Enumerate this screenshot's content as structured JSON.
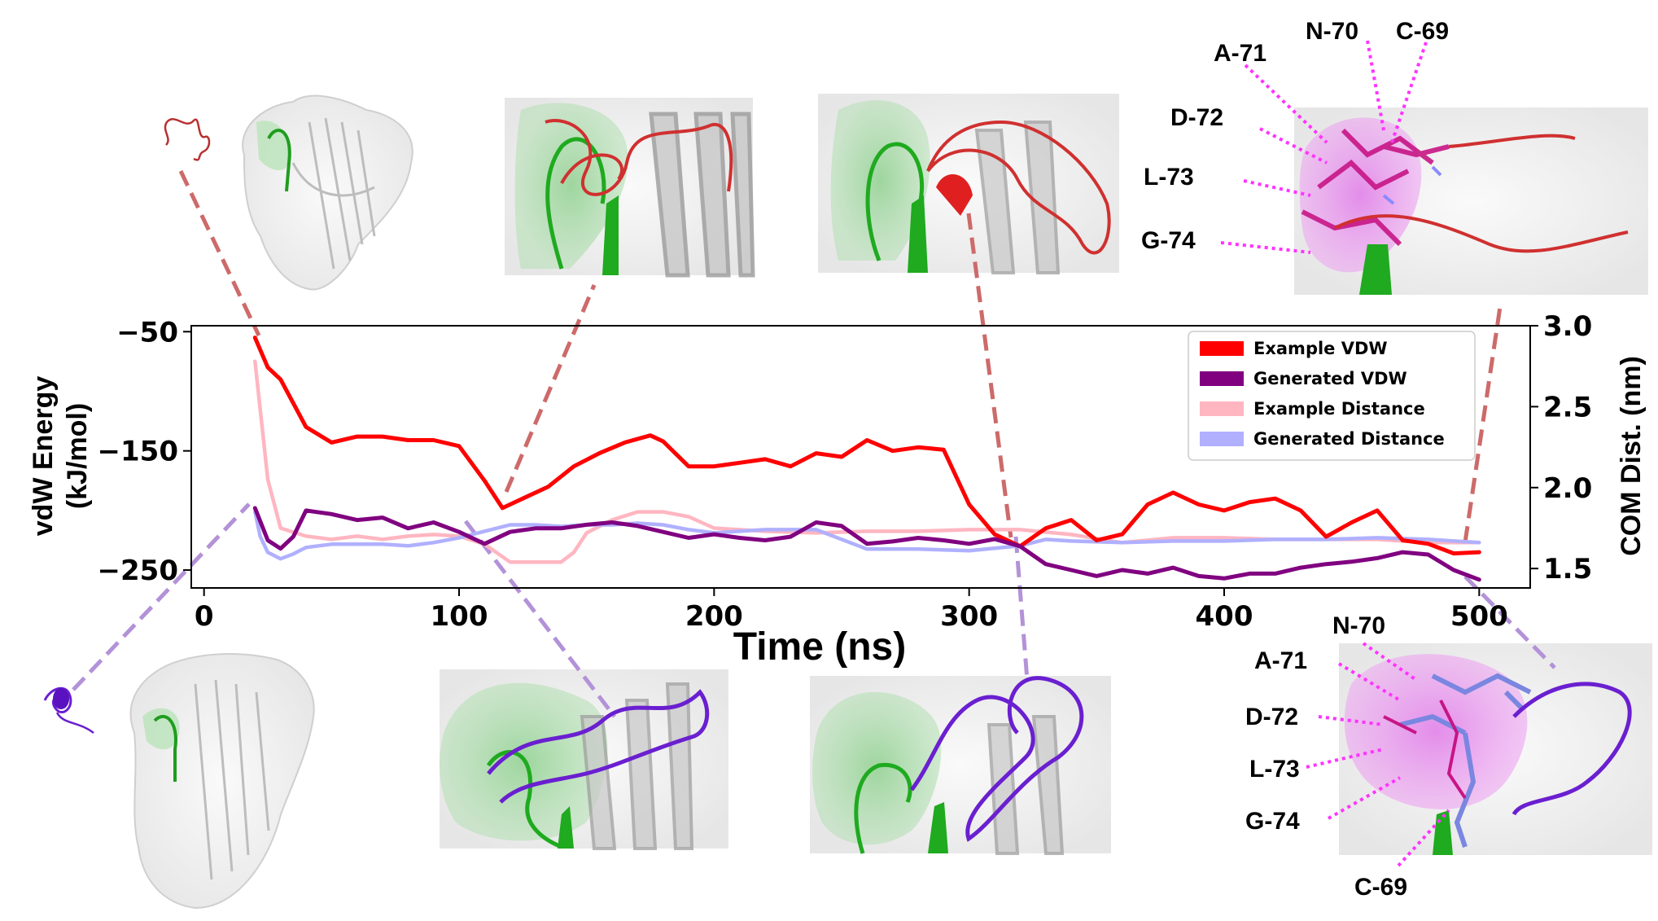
{
  "chart_data": {
    "type": "line",
    "xlabel": "Time (ns)",
    "ylabel_left": "vdW Energy\n(kJ/mol)",
    "ylabel_right": "COM Dist. (nm)",
    "xlim": [
      -5,
      520
    ],
    "ylim_left": [
      -265,
      -45
    ],
    "ylim_right": [
      1.38,
      3.0
    ],
    "x_ticks": [
      0,
      100,
      200,
      300,
      400,
      500
    ],
    "y_ticks_left": [
      -50,
      -150,
      -250
    ],
    "y_ticks_left_labels": [
      "−50",
      "−150",
      "−250"
    ],
    "y_ticks_right": [
      1.5,
      2.0,
      2.5,
      3.0
    ],
    "y_ticks_right_labels": [
      "1.5",
      "2.0",
      "2.5",
      "3.0"
    ],
    "grid": false,
    "legend_position": "top-right",
    "series": [
      {
        "name": "Example VDW",
        "axis": "left",
        "color": "#ff0000",
        "x": [
          20,
          25,
          30,
          40,
          50,
          60,
          70,
          80,
          90,
          100,
          110,
          117,
          125,
          135,
          145,
          155,
          165,
          175,
          180,
          190,
          200,
          210,
          220,
          230,
          240,
          250,
          260,
          270,
          280,
          290,
          300,
          310,
          320,
          330,
          340,
          350,
          360,
          370,
          380,
          390,
          400,
          410,
          420,
          430,
          440,
          450,
          460,
          470,
          480,
          490,
          500
        ],
        "y": [
          -55,
          -80,
          -90,
          -130,
          -143,
          -138,
          -138,
          -141,
          -141,
          -146,
          -175,
          -198,
          -190,
          -180,
          -163,
          -152,
          -143,
          -137,
          -142,
          -163,
          -163,
          -160,
          -157,
          -163,
          -152,
          -155,
          -141,
          -150,
          -147,
          -149,
          -195,
          -220,
          -230,
          -215,
          -208,
          -225,
          -220,
          -195,
          -185,
          -195,
          -200,
          -193,
          -190,
          -200,
          -222,
          -210,
          -200,
          -225,
          -228,
          -236,
          -235
        ]
      },
      {
        "name": "Generated VDW",
        "axis": "left",
        "color": "#800080",
        "x": [
          20,
          25,
          30,
          35,
          40,
          50,
          60,
          70,
          80,
          90,
          100,
          110,
          120,
          130,
          140,
          150,
          160,
          170,
          180,
          190,
          200,
          210,
          220,
          230,
          240,
          250,
          260,
          270,
          280,
          290,
          300,
          310,
          320,
          330,
          340,
          350,
          360,
          370,
          380,
          390,
          400,
          410,
          420,
          430,
          440,
          450,
          460,
          470,
          480,
          490,
          500
        ],
        "y": [
          -198,
          -225,
          -232,
          -222,
          -200,
          -203,
          -208,
          -206,
          -215,
          -210,
          -218,
          -228,
          -218,
          -215,
          -215,
          -212,
          -210,
          -213,
          -218,
          -223,
          -220,
          -223,
          -225,
          -222,
          -210,
          -213,
          -228,
          -226,
          -223,
          -225,
          -228,
          -224,
          -230,
          -245,
          -250,
          -255,
          -250,
          -253,
          -248,
          -255,
          -257,
          -253,
          -253,
          -248,
          -245,
          -243,
          -240,
          -235,
          -237,
          -250,
          -258
        ]
      },
      {
        "name": "Example Distance",
        "axis": "right",
        "color": "#ffb6c1",
        "x": [
          20,
          25,
          30,
          40,
          50,
          60,
          70,
          80,
          90,
          100,
          110,
          120,
          130,
          140,
          145,
          150,
          160,
          170,
          180,
          190,
          200,
          220,
          240,
          260,
          280,
          300,
          320,
          340,
          360,
          380,
          400,
          420,
          440,
          460,
          480,
          500
        ],
        "y": [
          2.78,
          2.05,
          1.75,
          1.7,
          1.68,
          1.7,
          1.68,
          1.7,
          1.71,
          1.7,
          1.65,
          1.54,
          1.54,
          1.54,
          1.6,
          1.72,
          1.8,
          1.85,
          1.85,
          1.82,
          1.75,
          1.73,
          1.72,
          1.73,
          1.73,
          1.74,
          1.74,
          1.71,
          1.66,
          1.69,
          1.69,
          1.68,
          1.68,
          1.68,
          1.66,
          1.66
        ]
      },
      {
        "name": "Generated Distance",
        "axis": "right",
        "color": "#b0b0ff",
        "x": [
          20,
          22,
          25,
          30,
          35,
          40,
          50,
          60,
          70,
          80,
          90,
          100,
          110,
          120,
          130,
          140,
          150,
          160,
          170,
          180,
          190,
          200,
          220,
          240,
          260,
          280,
          300,
          320,
          330,
          340,
          360,
          380,
          400,
          420,
          440,
          460,
          480,
          500
        ],
        "y": [
          1.85,
          1.7,
          1.6,
          1.56,
          1.59,
          1.63,
          1.65,
          1.65,
          1.65,
          1.64,
          1.66,
          1.69,
          1.73,
          1.77,
          1.77,
          1.76,
          1.77,
          1.77,
          1.78,
          1.77,
          1.74,
          1.72,
          1.74,
          1.74,
          1.62,
          1.62,
          1.61,
          1.64,
          1.68,
          1.67,
          1.66,
          1.67,
          1.67,
          1.68,
          1.68,
          1.69,
          1.68,
          1.66
        ]
      }
    ]
  },
  "annotations": {
    "top_right_residues": [
      "N-70",
      "C-69",
      "A-71",
      "D-72",
      "L-73",
      "G-74"
    ],
    "bottom_right_residues": [
      "N-70",
      "A-71",
      "D-72",
      "L-73",
      "G-74",
      "C-69"
    ]
  },
  "colors": {
    "example_peptide": "#d03030",
    "generated_peptide": "#6a1fd0",
    "target_green": "#22aa22",
    "label_leader": "#ff33ff"
  }
}
